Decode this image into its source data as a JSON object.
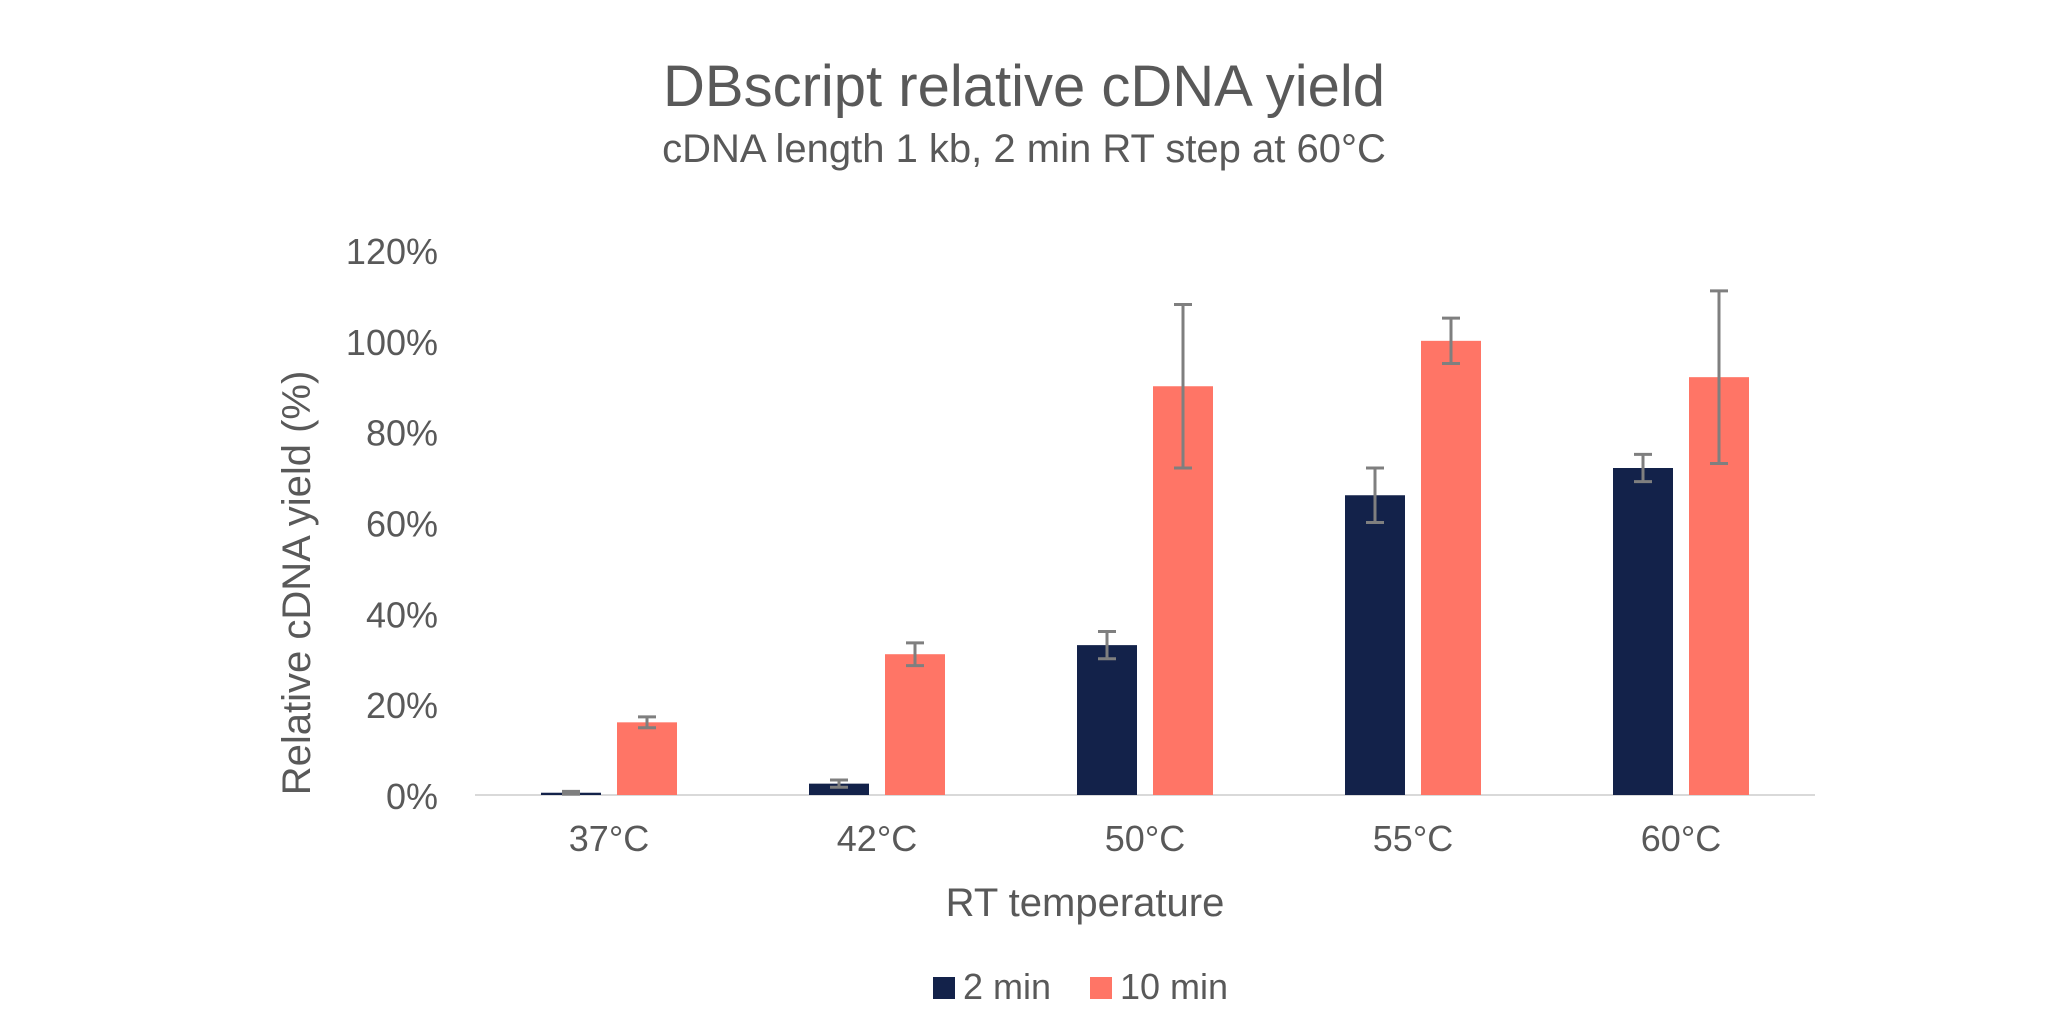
{
  "chart_data": {
    "type": "bar",
    "title": "DBscript relative cDNA yield",
    "subtitle": "cDNA length 1 kb, 2 min RT step at 60°C",
    "xlabel": "RT temperature",
    "ylabel": "Relative cDNA yield (%)",
    "categories": [
      "37°C",
      "42°C",
      "50°C",
      "55°C",
      "60°C"
    ],
    "ylim": [
      0,
      120
    ],
    "yticks": [
      0,
      20,
      40,
      60,
      80,
      100,
      120
    ],
    "ytick_labels": [
      "0%",
      "20%",
      "40%",
      "60%",
      "80%",
      "100%",
      "120%"
    ],
    "grid": false,
    "legend_position": "bottom",
    "series": [
      {
        "name": "2 min",
        "color": "#13224a",
        "values": [
          0.5,
          2.5,
          33,
          66,
          72
        ],
        "error": [
          0.3,
          0.8,
          3,
          6,
          3
        ]
      },
      {
        "name": "10 min",
        "color": "#ff7566",
        "values": [
          16,
          31,
          90,
          100,
          92
        ],
        "error": [
          1.2,
          2.5,
          18,
          5,
          19
        ]
      }
    ],
    "colors": {
      "text": "#595959",
      "axis_line": "#d9d9d9",
      "error_bar": "#7f7f7f"
    }
  }
}
